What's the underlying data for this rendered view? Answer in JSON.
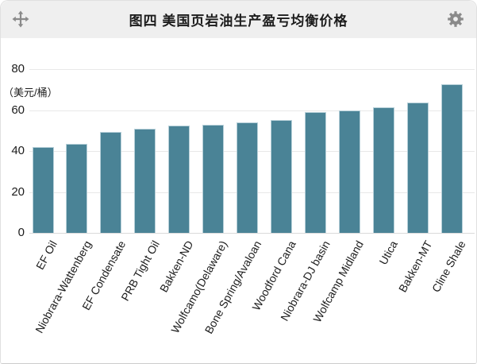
{
  "widget": {
    "title": "图四 美国页岩油生产盈亏均衡价格"
  },
  "chart_data": {
    "type": "bar",
    "title": "图四 美国页岩油生产盈亏均衡价格",
    "ylabel": "（美元/桶）",
    "xlabel": "",
    "categories": [
      "EF Oil",
      "Niobrara-Wattenberg",
      "EF Condensate",
      "PRB Tight Oil",
      "Bakken-ND",
      "Wolfcamo(Delaware)",
      "Bone Spring/Avaloan",
      "Woodford Cana",
      "Niobrara-DJ basin",
      "Wolfcamp Midland",
      "Utica",
      "Bakken-MT",
      "Cline Shale"
    ],
    "values": [
      42,
      43.5,
      49.5,
      51,
      52.5,
      53,
      54,
      55,
      59,
      60,
      61.5,
      63.5,
      72.5
    ],
    "ylim": [
      0,
      80
    ],
    "yticks": [
      0,
      20,
      40,
      60,
      80
    ],
    "grid": true,
    "legend_position": "none",
    "bar_color": "#4a8396",
    "bar_border_color": "#b7d0d9"
  },
  "colors": {
    "header_bg": "#efefef",
    "icon_gray": "#8a8a8a",
    "gridline": "#e8e8e8",
    "axis_line": "#d9d9d9",
    "text": "#1c1c1c"
  }
}
